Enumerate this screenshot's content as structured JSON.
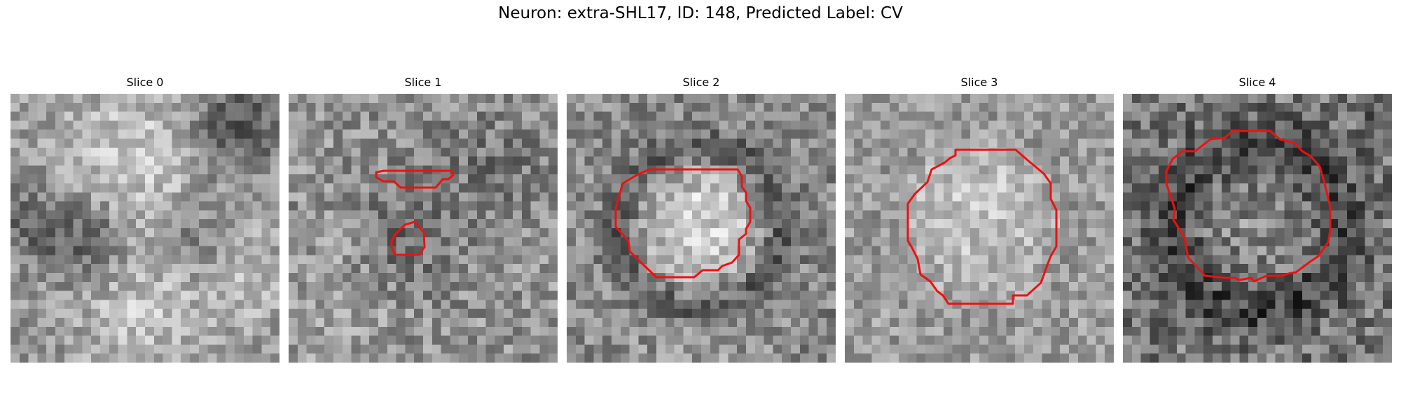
{
  "figure": {
    "title": "Neuron: extra-SHL17, ID: 148, Predicted Label: CV"
  },
  "contour_color": "#ee1111",
  "slices": [
    {
      "label": "Slice 0",
      "has_contour": false
    },
    {
      "label": "Slice 1",
      "has_contour": true,
      "contour_count": 2
    },
    {
      "label": "Slice 2",
      "has_contour": true,
      "contour_count": 1
    },
    {
      "label": "Slice 3",
      "has_contour": true,
      "contour_count": 1
    },
    {
      "label": "Slice 4",
      "has_contour": true,
      "contour_count": 1
    }
  ]
}
